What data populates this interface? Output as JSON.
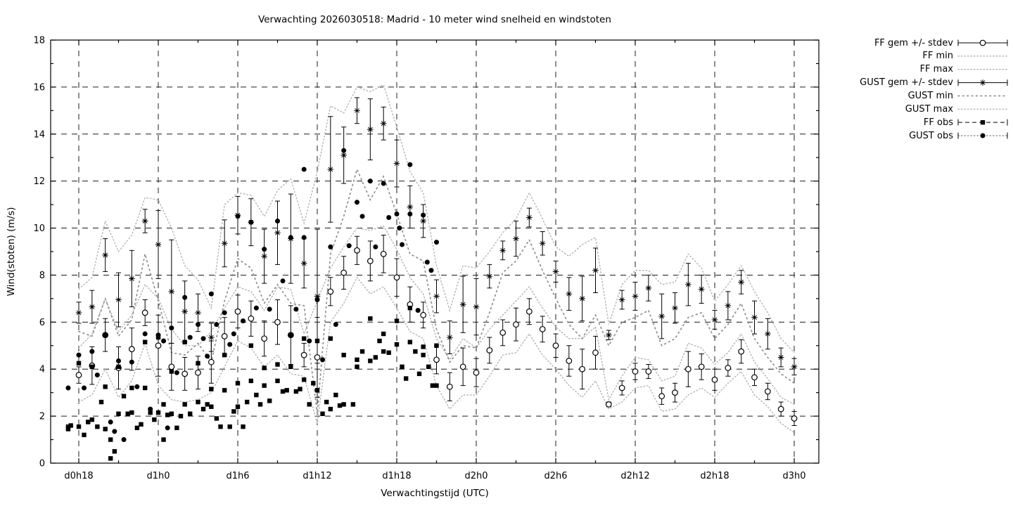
{
  "chart_data": {
    "type": "line",
    "title": "Verwachting 2026030518: Madrid - 10 meter wind snelheid en windstoten",
    "xlabel": "Verwachtingstijd (UTC)",
    "ylabel": "Wind(stoten) (m/s)",
    "ylim": [
      0,
      18
    ],
    "ytick_step": 2,
    "yticks": [
      0,
      2,
      4,
      6,
      8,
      10,
      12,
      14,
      16,
      18
    ],
    "x_range_hours": [
      15.9,
      73.9
    ],
    "grid": true,
    "legend_position": "outside-top-right",
    "xticks": [
      {
        "hour": 18,
        "label": "d0h18"
      },
      {
        "hour": 24,
        "label": "d1h0"
      },
      {
        "hour": 30,
        "label": "d1h6"
      },
      {
        "hour": 36,
        "label": "d1h12"
      },
      {
        "hour": 42,
        "label": "d1h18"
      },
      {
        "hour": 48,
        "label": "d2h0"
      },
      {
        "hour": 54,
        "label": "d2h6"
      },
      {
        "hour": 60,
        "label": "d2h12"
      },
      {
        "hour": 66,
        "label": "d2h18"
      },
      {
        "hour": 72,
        "label": "d3h0"
      }
    ],
    "minor_xticks_hours": [
      21,
      27,
      33,
      39,
      45,
      51,
      57,
      63,
      69
    ],
    "hours": [
      18,
      19,
      20,
      21,
      22,
      23,
      24,
      25,
      26,
      27,
      28,
      29,
      30,
      31,
      32,
      33,
      34,
      35,
      36,
      37,
      38,
      39,
      40,
      41,
      42,
      43,
      44,
      45,
      46,
      47,
      48,
      49,
      50,
      51,
      52,
      53,
      54,
      55,
      56,
      57,
      58,
      59,
      60,
      61,
      62,
      63,
      64,
      65,
      66,
      67,
      68,
      69,
      70,
      71,
      72
    ],
    "series": {
      "ff_gem": [
        3.75,
        4.15,
        5.45,
        4.05,
        4.85,
        6.4,
        5.0,
        4.1,
        3.8,
        3.85,
        4.3,
        5.4,
        6.45,
        6.15,
        5.3,
        6.0,
        5.45,
        4.6,
        4.5,
        7.3,
        8.1,
        9.05,
        8.6,
        8.9,
        7.9,
        6.75,
        6.3,
        4.4,
        3.25,
        4.1,
        3.85,
        4.8,
        5.55,
        5.9,
        6.45,
        5.7,
        5.0,
        4.35,
        4.0,
        4.7,
        2.5,
        3.2,
        3.9,
        3.9,
        2.85,
        3.0,
        4.0,
        4.1,
        3.55,
        4.05,
        4.75,
        3.65,
        3.05,
        2.3,
        1.9
      ],
      "ff_stdev": [
        0.35,
        0.8,
        0.7,
        0.9,
        0.9,
        0.55,
        1.3,
        1.0,
        0.7,
        0.7,
        0.9,
        0.8,
        0.7,
        0.75,
        0.75,
        0.95,
        1.25,
        0.5,
        1.7,
        0.6,
        0.7,
        0.6,
        0.85,
        0.8,
        0.8,
        0.75,
        0.55,
        0.6,
        0.6,
        0.8,
        0.6,
        0.55,
        0.55,
        0.7,
        0.55,
        0.55,
        0.5,
        0.65,
        0.85,
        0.7,
        0.1,
        0.3,
        0.35,
        0.3,
        0.35,
        0.4,
        0.75,
        0.55,
        0.45,
        0.35,
        0.5,
        0.35,
        0.35,
        0.3,
        0.3
      ],
      "ff_min": [
        2.6,
        2.9,
        4.0,
        2.8,
        3.5,
        5.1,
        3.3,
        2.7,
        2.6,
        2.7,
        3.0,
        4.1,
        5.2,
        4.9,
        4.1,
        4.6,
        3.8,
        3.7,
        1.7,
        6.0,
        6.8,
        7.9,
        7.2,
        7.5,
        6.6,
        5.6,
        5.3,
        3.3,
        2.3,
        2.9,
        2.9,
        3.7,
        4.6,
        4.7,
        5.5,
        4.6,
        4.0,
        3.3,
        2.8,
        3.5,
        2.3,
        2.6,
        3.2,
        3.3,
        2.2,
        2.3,
        2.9,
        3.2,
        2.8,
        3.4,
        3.9,
        2.9,
        2.4,
        1.7,
        1.3
      ],
      "ff_max": [
        4.9,
        5.5,
        7.0,
        5.6,
        6.3,
        7.6,
        7.0,
        5.7,
        5.0,
        5.0,
        5.6,
        6.6,
        7.5,
        7.3,
        6.5,
        7.5,
        7.4,
        5.5,
        6.9,
        8.3,
        9.2,
        10.0,
        9.9,
        10.1,
        9.1,
        7.9,
        7.2,
        5.3,
        4.4,
        5.3,
        4.9,
        5.7,
        6.3,
        6.9,
        7.5,
        6.6,
        5.8,
        5.3,
        5.3,
        5.8,
        2.7,
        3.7,
        4.5,
        4.4,
        3.5,
        3.7,
        5.1,
        4.9,
        4.2,
        4.7,
        5.5,
        4.3,
        3.6,
        2.8,
        2.5
      ],
      "gust_gem": [
        6.4,
        6.65,
        8.85,
        6.95,
        7.85,
        10.3,
        9.3,
        7.3,
        6.45,
        6.4,
        5.35,
        9.35,
        10.55,
        10.25,
        8.8,
        9.8,
        9.55,
        8.5,
        7.1,
        12.5,
        13.1,
        15.0,
        14.2,
        14.45,
        12.75,
        10.9,
        10.3,
        7.1,
        5.35,
        6.75,
        6.65,
        7.95,
        9.05,
        9.55,
        10.45,
        9.35,
        8.15,
        7.2,
        7.0,
        8.2,
        5.45,
        6.95,
        7.1,
        7.45,
        6.25,
        6.6,
        7.6,
        7.4,
        6.1,
        6.7,
        7.7,
        6.2,
        5.5,
        4.5,
        4.1
      ],
      "gust_stdev": [
        0.45,
        0.7,
        0.7,
        1.15,
        1.2,
        0.5,
        1.45,
        2.2,
        1.3,
        0.8,
        0.6,
        1.0,
        0.8,
        1.0,
        1.15,
        1.35,
        1.9,
        1.05,
        2.85,
        2.25,
        1.2,
        0.55,
        1.3,
        0.7,
        1.0,
        0.9,
        0.7,
        0.7,
        0.7,
        1.2,
        1.2,
        0.5,
        0.4,
        0.75,
        0.4,
        0.5,
        0.45,
        0.7,
        0.95,
        0.95,
        0.2,
        0.4,
        0.6,
        0.55,
        0.95,
        0.65,
        0.9,
        0.6,
        0.4,
        0.6,
        0.5,
        0.7,
        0.65,
        0.4,
        0.35
      ],
      "gust_min": [
        5.6,
        5.4,
        7.0,
        5.4,
        6.1,
        8.9,
        6.9,
        4.7,
        4.6,
        5.1,
        4.3,
        6.9,
        8.7,
        8.3,
        6.8,
        7.6,
        6.8,
        6.7,
        2.1,
        8.9,
        10.5,
        12.5,
        11.2,
        12.2,
        10.6,
        8.9,
        8.6,
        5.7,
        4.3,
        5.0,
        4.9,
        6.4,
        8.1,
        8.6,
        9.5,
        8.2,
        7.0,
        5.9,
        5.3,
        6.3,
        5.0,
        6.0,
        6.2,
        6.5,
        5.0,
        5.3,
        6.2,
        6.4,
        5.3,
        5.9,
        6.8,
        5.3,
        4.5,
        3.8,
        3.4
      ],
      "gust_max": [
        7.4,
        7.9,
        10.3,
        9.0,
        9.7,
        11.3,
        11.2,
        10.0,
        8.4,
        7.8,
        6.6,
        11.0,
        11.5,
        11.4,
        10.5,
        11.6,
        12.1,
        10.2,
        12.4,
        15.2,
        14.9,
        16.0,
        15.8,
        16.1,
        14.3,
        12.4,
        11.5,
        8.4,
        6.5,
        8.4,
        8.3,
        9.0,
        9.8,
        10.4,
        11.5,
        10.4,
        9.2,
        8.8,
        9.3,
        9.6,
        5.9,
        7.6,
        8.2,
        8.2,
        7.6,
        7.7,
        8.9,
        8.3,
        6.9,
        7.6,
        8.4,
        7.3,
        6.4,
        5.3,
        4.7
      ]
    },
    "observations": {
      "ff_obs": [
        [
          17.2,
          1.55
        ],
        [
          17.2,
          1.45
        ],
        [
          17.4,
          1.6
        ],
        [
          18.0,
          4.25
        ],
        [
          18.0,
          1.55
        ],
        [
          18.4,
          1.2
        ],
        [
          18.7,
          1.75
        ],
        [
          19.0,
          4.1
        ],
        [
          19.0,
          1.85
        ],
        [
          19.4,
          1.55
        ],
        [
          19.7,
          2.6
        ],
        [
          20.0,
          3.25
        ],
        [
          20.0,
          1.45
        ],
        [
          20.4,
          1.0
        ],
        [
          20.4,
          0.2
        ],
        [
          20.7,
          0.5
        ],
        [
          21.0,
          4.1
        ],
        [
          21.0,
          2.1
        ],
        [
          21.4,
          2.85
        ],
        [
          21.7,
          2.1
        ],
        [
          22.0,
          3.2
        ],
        [
          22.0,
          2.15
        ],
        [
          22.4,
          1.5
        ],
        [
          22.7,
          1.65
        ],
        [
          23.0,
          5.15
        ],
        [
          23.0,
          3.2
        ],
        [
          23.4,
          2.15
        ],
        [
          23.7,
          1.85
        ],
        [
          24.0,
          5.35
        ],
        [
          24.0,
          2.15
        ],
        [
          24.4,
          2.5
        ],
        [
          24.4,
          1.0
        ],
        [
          24.7,
          2.05
        ],
        [
          25.0,
          3.9
        ],
        [
          25.0,
          2.1
        ],
        [
          25.4,
          1.5
        ],
        [
          25.7,
          2.0
        ],
        [
          26.0,
          5.15
        ],
        [
          26.0,
          2.5
        ],
        [
          26.4,
          2.1
        ],
        [
          27.0,
          4.25
        ],
        [
          27.0,
          2.6
        ],
        [
          27.4,
          2.3
        ],
        [
          27.7,
          2.5
        ],
        [
          28.0,
          3.15
        ],
        [
          28.0,
          2.4
        ],
        [
          28.4,
          1.9
        ],
        [
          28.7,
          1.55
        ],
        [
          29.0,
          4.6
        ],
        [
          29.0,
          3.1
        ],
        [
          29.4,
          1.55
        ],
        [
          29.7,
          2.2
        ],
        [
          30.0,
          3.4
        ],
        [
          30.0,
          2.4
        ],
        [
          30.4,
          1.55
        ],
        [
          30.7,
          2.6
        ],
        [
          31.0,
          5.0
        ],
        [
          31.0,
          3.5
        ],
        [
          31.4,
          2.9
        ],
        [
          31.7,
          2.5
        ],
        [
          32.0,
          4.05
        ],
        [
          32.0,
          3.3
        ],
        [
          32.4,
          2.65
        ],
        [
          33.0,
          4.2
        ],
        [
          33.0,
          3.5
        ],
        [
          33.4,
          3.05
        ],
        [
          33.7,
          3.1
        ],
        [
          34.0,
          5.45
        ],
        [
          34.0,
          4.1
        ],
        [
          34.4,
          3.05
        ],
        [
          34.7,
          3.15
        ],
        [
          35.0,
          5.3
        ],
        [
          35.0,
          3.55
        ],
        [
          35.4,
          2.5
        ],
        [
          35.7,
          3.4
        ],
        [
          36.0,
          5.2
        ],
        [
          36.0,
          3.1
        ],
        [
          36.4,
          2.1
        ],
        [
          36.7,
          2.6
        ],
        [
          37.0,
          5.3
        ],
        [
          37.0,
          2.3
        ],
        [
          37.4,
          2.9
        ],
        [
          37.7,
          2.45
        ],
        [
          38.0,
          4.6
        ],
        [
          38.0,
          2.5
        ],
        [
          38.7,
          2.5
        ],
        [
          39.0,
          4.4
        ],
        [
          39.0,
          4.1
        ],
        [
          39.4,
          4.75
        ],
        [
          40.0,
          6.15
        ],
        [
          40.0,
          4.35
        ],
        [
          40.4,
          4.5
        ],
        [
          40.7,
          5.2
        ],
        [
          41.0,
          5.5
        ],
        [
          41.0,
          4.75
        ],
        [
          41.4,
          4.7
        ],
        [
          42.0,
          6.05
        ],
        [
          42.0,
          5.05
        ],
        [
          42.4,
          4.1
        ],
        [
          42.7,
          3.6
        ],
        [
          43.0,
          6.6
        ],
        [
          43.0,
          5.15
        ],
        [
          43.4,
          4.75
        ],
        [
          43.7,
          3.8
        ],
        [
          44.0,
          4.95
        ],
        [
          44.0,
          4.6
        ],
        [
          44.4,
          4.1
        ],
        [
          44.7,
          3.3
        ],
        [
          45.0,
          5.0
        ],
        [
          45.0,
          3.3
        ]
      ],
      "gust_obs": [
        [
          17.2,
          3.2
        ],
        [
          18.0,
          4.6
        ],
        [
          18.4,
          3.2
        ],
        [
          19.0,
          4.75
        ],
        [
          19.4,
          3.75
        ],
        [
          20.0,
          5.45
        ],
        [
          20.4,
          1.75
        ],
        [
          20.7,
          1.35
        ],
        [
          21.0,
          4.35
        ],
        [
          21.4,
          1.0
        ],
        [
          22.0,
          4.3
        ],
        [
          22.4,
          3.25
        ],
        [
          23.0,
          5.5
        ],
        [
          23.4,
          2.3
        ],
        [
          24.0,
          5.45
        ],
        [
          24.4,
          5.2
        ],
        [
          24.7,
          1.5
        ],
        [
          25.0,
          5.75
        ],
        [
          25.4,
          3.85
        ],
        [
          26.0,
          7.05
        ],
        [
          26.4,
          5.35
        ],
        [
          27.0,
          5.9
        ],
        [
          27.4,
          5.3
        ],
        [
          27.7,
          4.55
        ],
        [
          28.0,
          7.2
        ],
        [
          28.4,
          5.9
        ],
        [
          29.0,
          6.4
        ],
        [
          29.4,
          5.05
        ],
        [
          29.7,
          5.5
        ],
        [
          30.0,
          10.5
        ],
        [
          30.4,
          6.05
        ],
        [
          31.0,
          10.25
        ],
        [
          31.4,
          6.6
        ],
        [
          32.0,
          9.1
        ],
        [
          32.4,
          6.55
        ],
        [
          33.0,
          10.3
        ],
        [
          33.4,
          7.75
        ],
        [
          34.0,
          9.6
        ],
        [
          34.4,
          6.55
        ],
        [
          35.0,
          12.5
        ],
        [
          35.0,
          9.6
        ],
        [
          35.4,
          5.2
        ],
        [
          36.0,
          6.95
        ],
        [
          36.4,
          4.4
        ],
        [
          37.0,
          9.2
        ],
        [
          37.4,
          5.9
        ],
        [
          38.0,
          13.3
        ],
        [
          38.4,
          9.25
        ],
        [
          39.0,
          11.1
        ],
        [
          39.4,
          10.5
        ],
        [
          40.0,
          12.0
        ],
        [
          40.4,
          9.2
        ],
        [
          41.0,
          11.9
        ],
        [
          41.4,
          10.45
        ],
        [
          42.0,
          10.6
        ],
        [
          42.2,
          10.0
        ],
        [
          42.4,
          9.3
        ],
        [
          43.0,
          12.7
        ],
        [
          43.0,
          10.6
        ],
        [
          43.6,
          6.5
        ],
        [
          44.0,
          10.55
        ],
        [
          44.3,
          8.55
        ],
        [
          44.6,
          8.2
        ],
        [
          45.0,
          9.4
        ]
      ]
    },
    "legend": [
      {
        "label": "FF gem +/- stdev",
        "style": "errorbar_circle"
      },
      {
        "label": "FF min",
        "style": "dots_fine"
      },
      {
        "label": "FF max",
        "style": "dots_fine"
      },
      {
        "label": "GUST gem +/- stdev",
        "style": "errorbar_star"
      },
      {
        "label": "GUST min",
        "style": "dots_coarse"
      },
      {
        "label": "GUST max",
        "style": "dots_fine"
      },
      {
        "label": "FF obs",
        "style": "dash_square"
      },
      {
        "label": "GUST obs",
        "style": "dots_bullet"
      }
    ],
    "colors": {
      "foreground": "#000000",
      "envelope_dotted": "#b3b3b3",
      "gust_min_dotted": "#8f8f8f",
      "background": "#ffffff"
    }
  }
}
